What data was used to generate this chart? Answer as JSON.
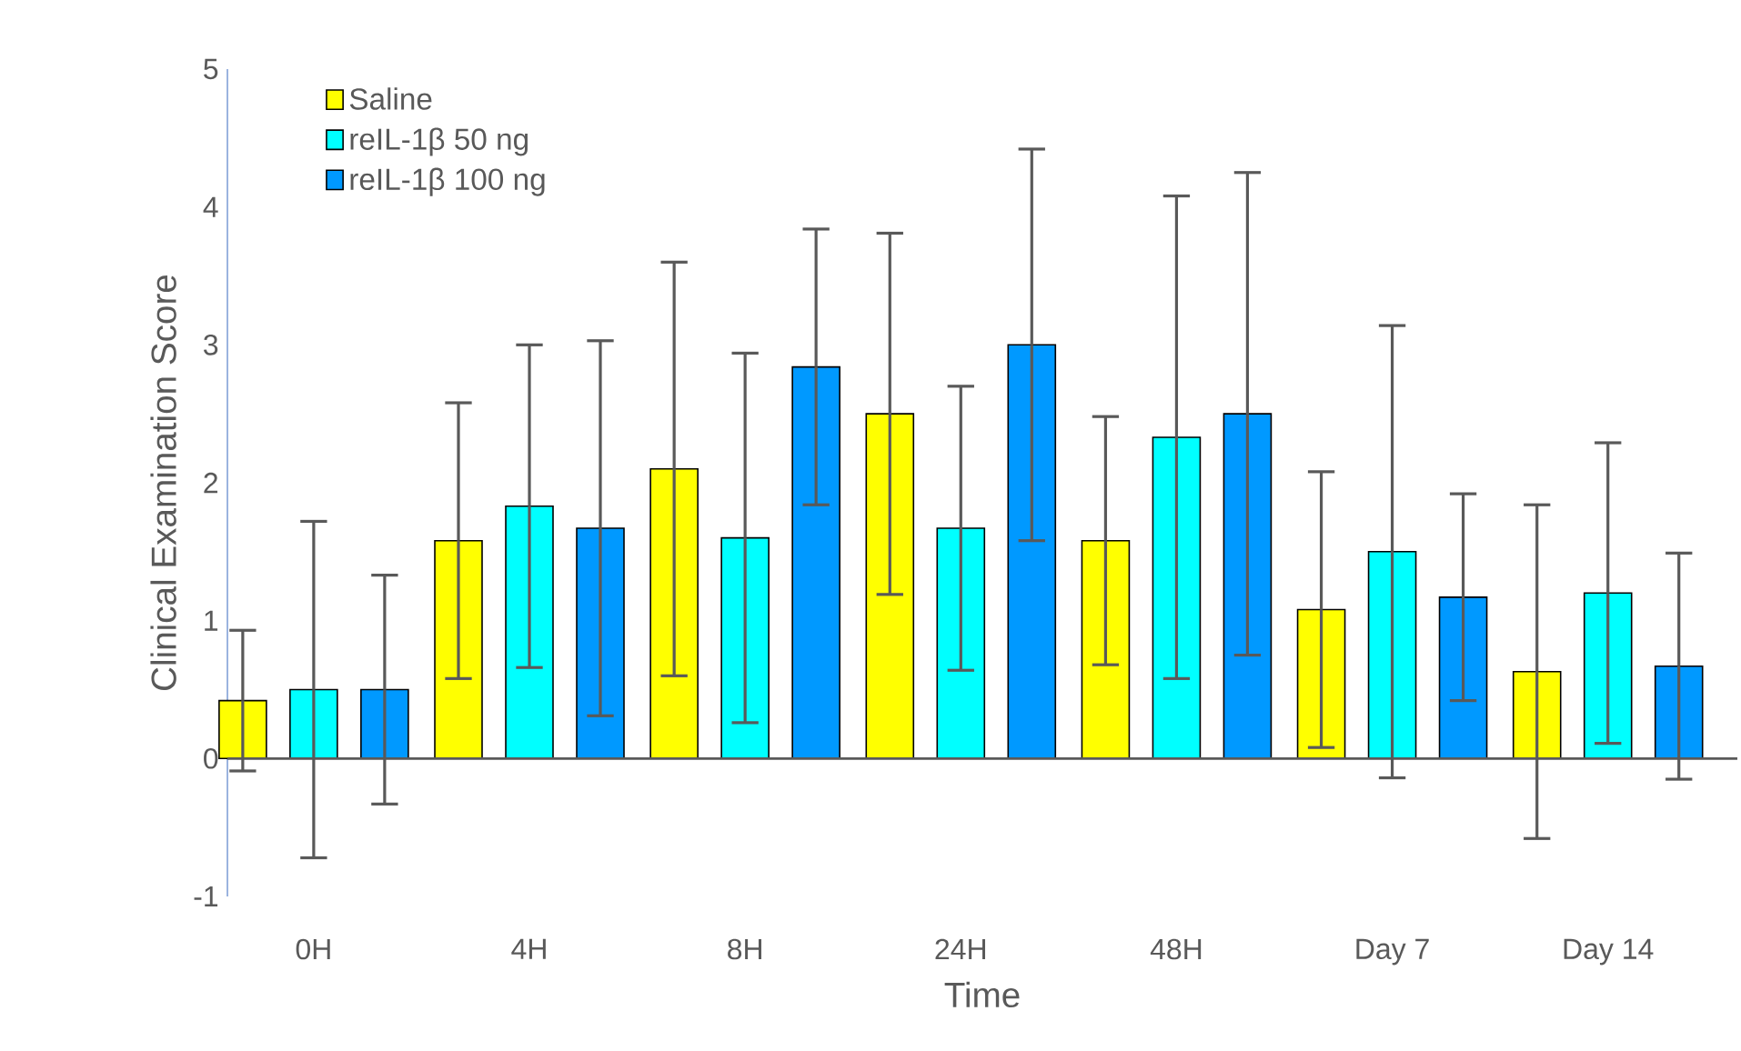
{
  "chart_data": {
    "type": "bar",
    "xlabel": "Time",
    "ylabel": "Clinical Examination Score",
    "categories": [
      "0H",
      "4H",
      "8H",
      "24H",
      "48H",
      "Day 7",
      "Day 14"
    ],
    "series": [
      {
        "name": "Saline",
        "color": "#ffff00",
        "values": [
          0.42,
          1.58,
          2.1,
          2.5,
          1.58,
          1.08,
          0.63
        ],
        "errors": [
          0.51,
          1.0,
          1.5,
          1.31,
          0.9,
          1.0,
          1.21
        ]
      },
      {
        "name": "reIL-1β 50 ng",
        "color": "#00ffff",
        "values": [
          0.5,
          1.83,
          1.6,
          1.67,
          2.33,
          1.5,
          1.2
        ],
        "errors": [
          1.22,
          1.17,
          1.34,
          1.03,
          1.75,
          1.64,
          1.09
        ]
      },
      {
        "name": "reIL-1β 100 ng",
        "color": "#0099ff",
        "values": [
          0.5,
          1.67,
          2.84,
          3.0,
          2.5,
          1.17,
          0.67
        ],
        "errors": [
          0.83,
          1.36,
          1.0,
          1.42,
          1.75,
          0.75,
          0.82
        ]
      }
    ],
    "ylim": [
      -1,
      5
    ],
    "yticks": [
      -1,
      0,
      1,
      2,
      3,
      4,
      5
    ],
    "legend": "top left"
  }
}
